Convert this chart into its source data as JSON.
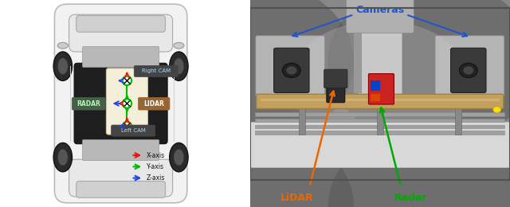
{
  "fig_width": 6.4,
  "fig_height": 2.6,
  "dpi": 100,
  "left_panel": {
    "radar_label": "RADAR",
    "lidar_label": "LIDAR",
    "right_cam_label": "Right CAM",
    "left_cam_label": "Left CAM",
    "radar_bg": "#4a5c4a",
    "lidar_bg": "#996633",
    "cam_bg": "#444444",
    "sensor_zone_color": "#f5eed8",
    "legend_items": [
      {
        "label": "X-axis",
        "color": "#ee1111"
      },
      {
        "label": "Y-axis",
        "color": "#00bb00"
      },
      {
        "label": "Z-axis",
        "color": "#2244ee"
      }
    ]
  },
  "right_panel": {
    "cameras_label": "Cameras",
    "cameras_color": "#2255cc",
    "lidar_label": "LiDAR",
    "lidar_color": "#ee6600",
    "radar_label": "Radar",
    "radar_color": "#00aa00",
    "bg_color": "#909090",
    "photo_border": "#606060"
  }
}
